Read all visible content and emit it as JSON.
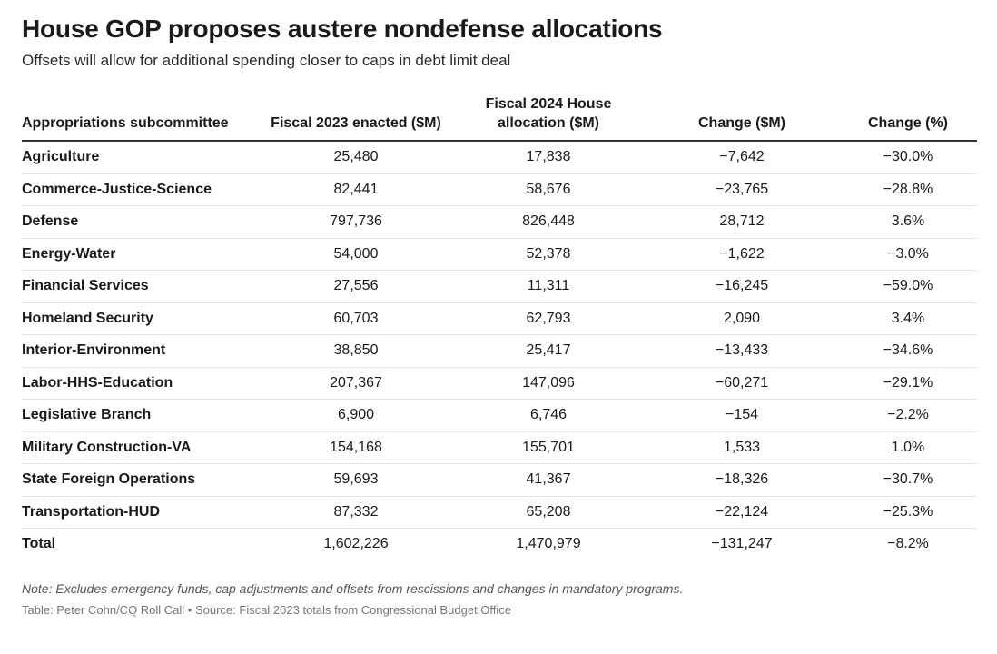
{
  "chart_data": {
    "type": "table",
    "title": "House GOP proposes austere nondefense allocations",
    "subtitle": "Offsets will allow for additional spending closer to caps in debt limit deal",
    "columns": [
      "Appropriations subcommittee",
      "Fiscal 2023 enacted ($M)",
      "Fiscal 2024 House allocation ($M)",
      "Change ($M)",
      "Change (%)"
    ],
    "rows": [
      [
        "Agriculture",
        "25,480",
        "17,838",
        "−7,642",
        "−30.0%"
      ],
      [
        "Commerce-Justice-Science",
        "82,441",
        "58,676",
        "−23,765",
        "−28.8%"
      ],
      [
        "Defense",
        "797,736",
        "826,448",
        "28,712",
        "3.6%"
      ],
      [
        "Energy-Water",
        "54,000",
        "52,378",
        "−1,622",
        "−3.0%"
      ],
      [
        "Financial Services",
        "27,556",
        "11,311",
        "−16,245",
        "−59.0%"
      ],
      [
        "Homeland Security",
        "60,703",
        "62,793",
        "2,090",
        "3.4%"
      ],
      [
        "Interior-Environment",
        "38,850",
        "25,417",
        "−13,433",
        "−34.6%"
      ],
      [
        "Labor-HHS-Education",
        "207,367",
        "147,096",
        "−60,271",
        "−29.1%"
      ],
      [
        "Legislative Branch",
        "6,900",
        "6,746",
        "−154",
        "−2.2%"
      ],
      [
        "Military Construction-VA",
        "154,168",
        "155,701",
        "1,533",
        "1.0%"
      ],
      [
        "State Foreign Operations",
        "59,693",
        "41,367",
        "−18,326",
        "−30.7%"
      ],
      [
        "Transportation-HUD",
        "87,332",
        "65,208",
        "−22,124",
        "−25.3%"
      ],
      [
        "Total",
        "1,602,226",
        "1,470,979",
        "−131,247",
        "−8.2%"
      ]
    ],
    "note": "Note: Excludes emergency funds, cap adjustments and offsets from rescissions and changes in mandatory programs.",
    "source": "Table: Peter Cohn/CQ Roll Call • Source: Fiscal 2023 totals from Congressional Budget Office"
  }
}
